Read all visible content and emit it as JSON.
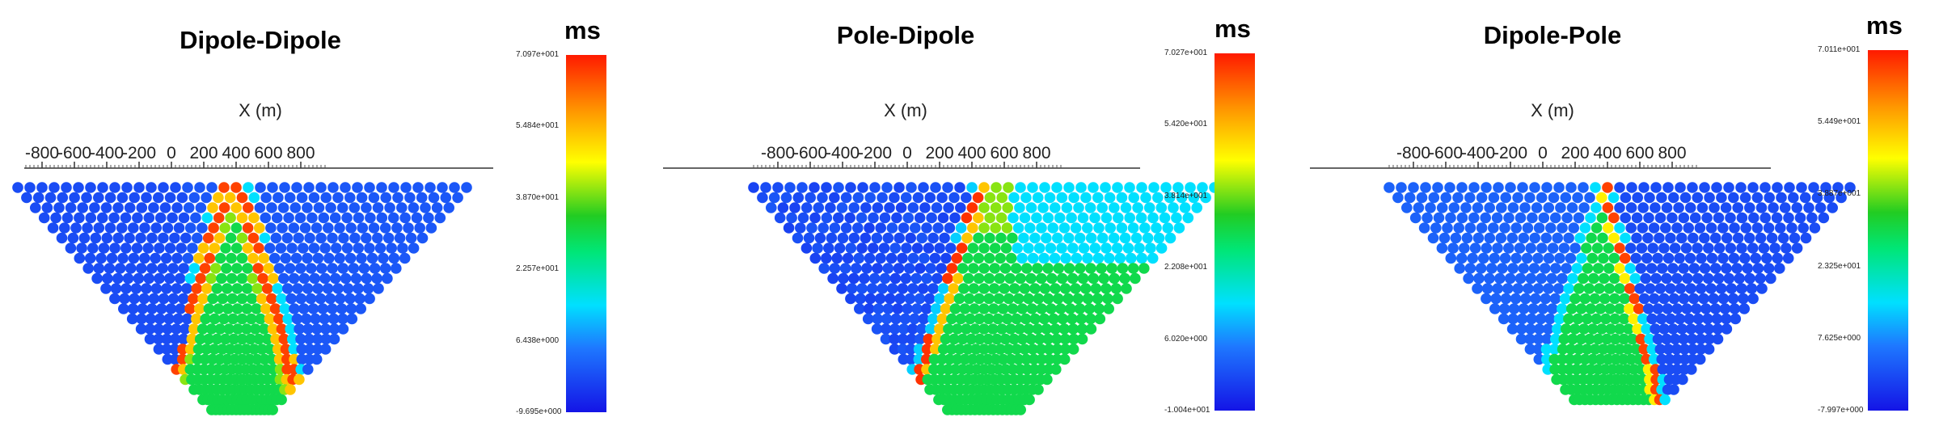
{
  "chart_data": [
    {
      "type": "heatmap",
      "title": "Dipole-Dipole",
      "xlabel": "X (m)",
      "x_ticks": [
        -800,
        -600,
        -400,
        -200,
        0,
        200,
        400,
        600,
        800
      ],
      "colorbar": {
        "unit": "ms",
        "ticks": [
          "7.097e+001",
          "5.484e+001",
          "3.870e+001",
          "2.257e+001",
          "6.438e+000",
          "-9.695e+000"
        ],
        "range": [
          -9.695,
          70.97
        ]
      },
      "pattern": "inverted V-shaped high anomaly, low values on left"
    },
    {
      "type": "heatmap",
      "title": "Pole-Dipole",
      "xlabel": "X (m)",
      "x_ticks": [
        -800,
        -600,
        -400,
        -200,
        0,
        200,
        400,
        600,
        800
      ],
      "colorbar": {
        "unit": "ms",
        "ticks": [
          "7.027e+001",
          "5.420e+001",
          "3.814e+001",
          "2.208e+001",
          "6.020e+000",
          "-1.004e+001"
        ],
        "range": [
          -10.04,
          70.27
        ]
      },
      "pattern": "diagonal high band rising to the right"
    },
    {
      "type": "heatmap",
      "title": "Dipole-Pole",
      "xlabel": "X (m)",
      "x_ticks": [
        -800,
        -600,
        -400,
        -200,
        0,
        200,
        400,
        600,
        800
      ],
      "colorbar": {
        "unit": "ms",
        "ticks": [
          "7.011e+001",
          "5.449e+001",
          "3.887e+001",
          "2.325e+001",
          "7.625e+000",
          "-7.997e+000"
        ],
        "range": [
          -7.997,
          70.11
        ]
      },
      "pattern": "diagonal high band on right side, low values far right"
    }
  ]
}
